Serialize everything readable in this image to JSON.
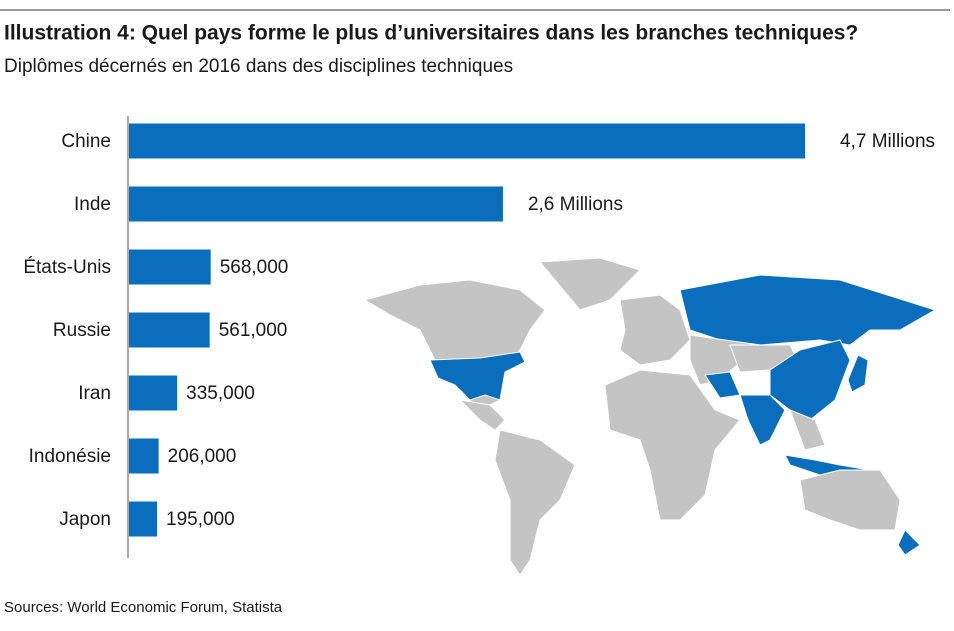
{
  "chart_data": {
    "type": "bar",
    "orientation": "horizontal",
    "title": "Illustration 4: Quel pays forme le plus d’universitaires dans les branches techniques?",
    "subtitle": "Diplômes décernés en 2016 dans des disciplines techniques",
    "categories": [
      "Chine",
      "Inde",
      "États-Unis",
      "Russie",
      "Iran",
      "Indonésie",
      "Japon"
    ],
    "values": [
      4700000,
      2600000,
      568000,
      561000,
      335000,
      206000,
      195000
    ],
    "value_labels": [
      "4,7 Millions",
      "2,6 Millions",
      "568,000",
      "561,000",
      "335,000",
      "206,000",
      "195,000"
    ],
    "color": "#0a6ebd",
    "source": "Sources: World Economic Forum, Statista"
  }
}
